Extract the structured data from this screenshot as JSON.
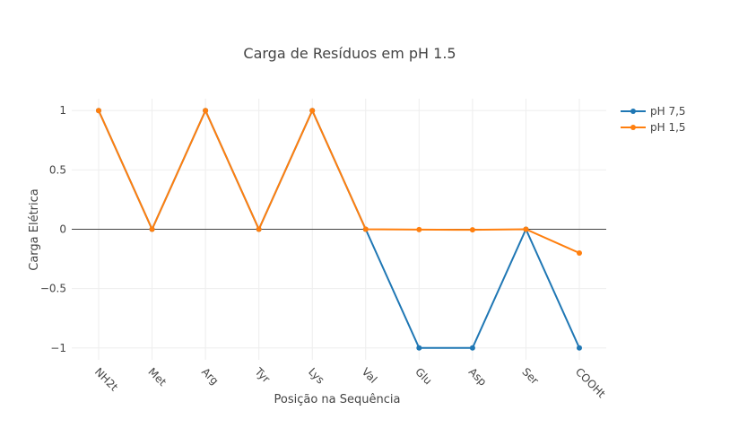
{
  "chart_data": {
    "type": "line",
    "title": "Carga de Resíduos em pH 1.5",
    "xlabel": "Posição na Sequência",
    "ylabel": "Carga Elétrica",
    "categories": [
      "NH2t",
      "Met",
      "Arg",
      "Tyr",
      "Lys",
      "Val",
      "Glu",
      "Asp",
      "Ser",
      "COOHt"
    ],
    "ylim": [
      -1.1,
      1.1
    ],
    "yticks": [
      1,
      0.5,
      0,
      -0.5,
      -1
    ],
    "ytick_labels": [
      "1",
      "0.5",
      "0",
      "−0.5",
      "−1"
    ],
    "grid": true,
    "legend_position": "top-right",
    "series": [
      {
        "name": "pH 7,5",
        "color": "#1f77b4",
        "values": [
          1,
          0,
          1,
          0,
          1,
          0,
          -1,
          -1,
          0,
          -1
        ]
      },
      {
        "name": "pH 1,5",
        "color": "#ff7f0e",
        "values": [
          1,
          0,
          1,
          0,
          1,
          0,
          -0.003,
          -0.005,
          0,
          -0.2
        ]
      }
    ]
  }
}
